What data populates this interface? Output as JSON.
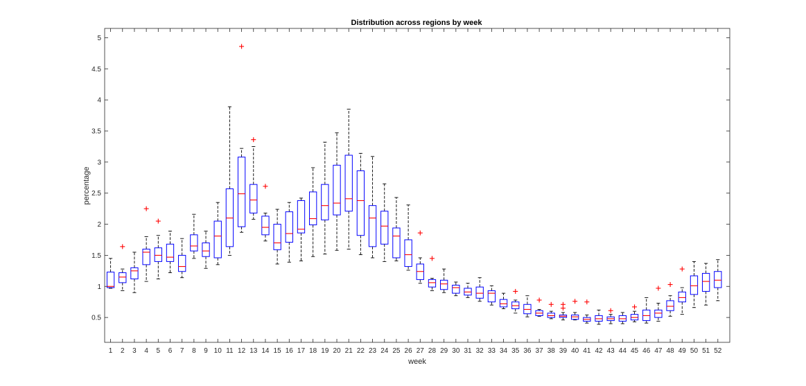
{
  "chart_data": {
    "type": "boxplot",
    "title": "Distribution across regions by week",
    "xlabel": "week",
    "ylabel": "percentage",
    "ylim": [
      0.1,
      5.15
    ],
    "yticks": [
      0.5,
      1,
      1.5,
      2,
      2.5,
      3,
      3.5,
      4,
      4.5,
      5
    ],
    "ytick_labels": [
      "0.5",
      "1",
      "1.5",
      "2",
      "2.5",
      "3",
      "3.5",
      "4",
      "4.5",
      "5"
    ],
    "grid": false,
    "colors": {
      "box": "#0000ff",
      "median": "#ff0000",
      "whisker": "#000000",
      "outlier": "#ff0000",
      "axis": "#262626"
    },
    "categories": [
      "1",
      "2",
      "3",
      "4",
      "5",
      "6",
      "7",
      "8",
      "9",
      "10",
      "11",
      "12",
      "13",
      "14",
      "15",
      "16",
      "17",
      "18",
      "19",
      "20",
      "21",
      "22",
      "23",
      "24",
      "25",
      "26",
      "27",
      "28",
      "29",
      "30",
      "31",
      "32",
      "33",
      "34",
      "35",
      "36",
      "37",
      "38",
      "39",
      "40",
      "41",
      "42",
      "43",
      "44",
      "45",
      "46",
      "47",
      "48",
      "49",
      "50",
      "51",
      "52"
    ],
    "boxes": [
      {
        "week": "1",
        "lw": 0.97,
        "q1": 0.98,
        "med": 1.0,
        "q3": 1.23,
        "uw": 1.45,
        "out": []
      },
      {
        "week": "2",
        "lw": 0.93,
        "q1": 1.06,
        "med": 1.15,
        "q3": 1.22,
        "uw": 1.28,
        "out": [
          1.64
        ]
      },
      {
        "week": "3",
        "lw": 0.9,
        "q1": 1.12,
        "med": 1.25,
        "q3": 1.3,
        "uw": 1.55,
        "out": []
      },
      {
        "week": "4",
        "lw": 1.08,
        "q1": 1.35,
        "med": 1.55,
        "q3": 1.6,
        "uw": 1.8,
        "out": [
          2.25
        ]
      },
      {
        "week": "5",
        "lw": 1.12,
        "q1": 1.4,
        "med": 1.5,
        "q3": 1.62,
        "uw": 1.82,
        "out": [
          2.05
        ]
      },
      {
        "week": "6",
        "lw": 1.22,
        "q1": 1.4,
        "med": 1.47,
        "q3": 1.68,
        "uw": 1.89,
        "out": []
      },
      {
        "week": "7",
        "lw": 1.14,
        "q1": 1.24,
        "med": 1.32,
        "q3": 1.5,
        "uw": 1.77,
        "out": []
      },
      {
        "week": "8",
        "lw": 1.45,
        "q1": 1.57,
        "med": 1.65,
        "q3": 1.83,
        "uw": 2.16,
        "out": []
      },
      {
        "week": "9",
        "lw": 1.29,
        "q1": 1.48,
        "med": 1.57,
        "q3": 1.7,
        "uw": 1.89,
        "out": []
      },
      {
        "week": "10",
        "lw": 1.35,
        "q1": 1.46,
        "med": 1.81,
        "q3": 2.05,
        "uw": 2.35,
        "out": []
      },
      {
        "week": "11",
        "lw": 1.5,
        "q1": 1.64,
        "med": 2.1,
        "q3": 2.57,
        "uw": 3.89,
        "out": []
      },
      {
        "week": "12",
        "lw": 1.87,
        "q1": 1.96,
        "med": 2.49,
        "q3": 3.08,
        "uw": 3.22,
        "out": [
          4.86
        ]
      },
      {
        "week": "13",
        "lw": 2.08,
        "q1": 2.18,
        "med": 2.39,
        "q3": 2.64,
        "uw": 3.25,
        "out": [
          3.36
        ]
      },
      {
        "week": "14",
        "lw": 1.73,
        "q1": 1.83,
        "med": 1.95,
        "q3": 2.13,
        "uw": 2.18,
        "out": [
          2.61
        ]
      },
      {
        "week": "15",
        "lw": 1.36,
        "q1": 1.59,
        "med": 1.7,
        "q3": 2.0,
        "uw": 2.24,
        "out": []
      },
      {
        "week": "16",
        "lw": 1.39,
        "q1": 1.71,
        "med": 1.85,
        "q3": 2.2,
        "uw": 2.35,
        "out": []
      },
      {
        "week": "17",
        "lw": 1.41,
        "q1": 1.86,
        "med": 1.92,
        "q3": 2.38,
        "uw": 2.42,
        "out": []
      },
      {
        "week": "18",
        "lw": 1.48,
        "q1": 1.99,
        "med": 2.09,
        "q3": 2.52,
        "uw": 2.91,
        "out": []
      },
      {
        "week": "19",
        "lw": 1.52,
        "q1": 2.07,
        "med": 2.3,
        "q3": 2.64,
        "uw": 3.32,
        "out": []
      },
      {
        "week": "20",
        "lw": 1.58,
        "q1": 2.15,
        "med": 2.34,
        "q3": 2.95,
        "uw": 3.47,
        "out": []
      },
      {
        "week": "21",
        "lw": 1.6,
        "q1": 2.21,
        "med": 2.41,
        "q3": 3.11,
        "uw": 3.85,
        "out": []
      },
      {
        "week": "22",
        "lw": 1.51,
        "q1": 1.82,
        "med": 2.38,
        "q3": 2.86,
        "uw": 3.14,
        "out": []
      },
      {
        "week": "23",
        "lw": 1.46,
        "q1": 1.64,
        "med": 2.1,
        "q3": 2.3,
        "uw": 3.09,
        "out": []
      },
      {
        "week": "24",
        "lw": 1.4,
        "q1": 1.68,
        "med": 1.97,
        "q3": 2.21,
        "uw": 2.65,
        "out": []
      },
      {
        "week": "25",
        "lw": 1.41,
        "q1": 1.46,
        "med": 1.81,
        "q3": 1.94,
        "uw": 2.43,
        "out": []
      },
      {
        "week": "26",
        "lw": 1.26,
        "q1": 1.32,
        "med": 1.51,
        "q3": 1.75,
        "uw": 2.31,
        "out": []
      },
      {
        "week": "27",
        "lw": 1.05,
        "q1": 1.11,
        "med": 1.24,
        "q3": 1.36,
        "uw": 1.46,
        "out": [
          1.86
        ]
      },
      {
        "week": "28",
        "lw": 0.93,
        "q1": 0.99,
        "med": 1.06,
        "q3": 1.11,
        "uw": 1.13,
        "out": [
          1.45
        ]
      },
      {
        "week": "29",
        "lw": 0.9,
        "q1": 0.95,
        "med": 1.04,
        "q3": 1.1,
        "uw": 1.28,
        "out": []
      },
      {
        "week": "30",
        "lw": 0.85,
        "q1": 0.89,
        "med": 0.98,
        "q3": 1.02,
        "uw": 1.07,
        "out": []
      },
      {
        "week": "31",
        "lw": 0.82,
        "q1": 0.86,
        "med": 0.91,
        "q3": 0.97,
        "uw": 1.05,
        "out": []
      },
      {
        "week": "32",
        "lw": 0.76,
        "q1": 0.81,
        "med": 0.89,
        "q3": 0.99,
        "uw": 1.14,
        "out": []
      },
      {
        "week": "33",
        "lw": 0.7,
        "q1": 0.75,
        "med": 0.89,
        "q3": 0.93,
        "uw": 1.01,
        "out": []
      },
      {
        "week": "34",
        "lw": 0.64,
        "q1": 0.67,
        "med": 0.72,
        "q3": 0.79,
        "uw": 0.89,
        "out": []
      },
      {
        "week": "35",
        "lw": 0.57,
        "q1": 0.64,
        "med": 0.69,
        "q3": 0.75,
        "uw": 0.78,
        "out": [
          0.92
        ]
      },
      {
        "week": "36",
        "lw": 0.51,
        "q1": 0.56,
        "med": 0.63,
        "q3": 0.71,
        "uw": 0.85,
        "out": []
      },
      {
        "week": "37",
        "lw": 0.52,
        "q1": 0.53,
        "med": 0.57,
        "q3": 0.61,
        "uw": 0.63,
        "out": [
          0.78
        ]
      },
      {
        "week": "38",
        "lw": 0.48,
        "q1": 0.5,
        "med": 0.53,
        "q3": 0.57,
        "uw": 0.6,
        "out": [
          0.71
        ]
      },
      {
        "week": "39",
        "lw": 0.46,
        "q1": 0.5,
        "med": 0.52,
        "q3": 0.54,
        "uw": 0.58,
        "out": [
          0.65,
          0.71
        ]
      },
      {
        "week": "40",
        "lw": 0.46,
        "q1": 0.47,
        "med": 0.51,
        "q3": 0.54,
        "uw": 0.58,
        "out": [
          0.76
        ]
      },
      {
        "week": "41",
        "lw": 0.41,
        "q1": 0.44,
        "med": 0.47,
        "q3": 0.5,
        "uw": 0.54,
        "out": [
          0.75
        ]
      },
      {
        "week": "42",
        "lw": 0.39,
        "q1": 0.44,
        "med": 0.48,
        "q3": 0.53,
        "uw": 0.62,
        "out": []
      },
      {
        "week": "43",
        "lw": 0.4,
        "q1": 0.45,
        "med": 0.48,
        "q3": 0.51,
        "uw": 0.55,
        "out": [
          0.61
        ]
      },
      {
        "week": "44",
        "lw": 0.4,
        "q1": 0.44,
        "med": 0.48,
        "q3": 0.53,
        "uw": 0.58,
        "out": []
      },
      {
        "week": "45",
        "lw": 0.43,
        "q1": 0.46,
        "med": 0.5,
        "q3": 0.55,
        "uw": 0.6,
        "out": [
          0.67
        ]
      },
      {
        "week": "46",
        "lw": 0.41,
        "q1": 0.45,
        "med": 0.53,
        "q3": 0.62,
        "uw": 0.82,
        "out": []
      },
      {
        "week": "47",
        "lw": 0.44,
        "q1": 0.5,
        "med": 0.57,
        "q3": 0.62,
        "uw": 0.73,
        "out": [
          0.97
        ]
      },
      {
        "week": "48",
        "lw": 0.52,
        "q1": 0.61,
        "med": 0.68,
        "q3": 0.77,
        "uw": 0.85,
        "out": [
          1.03
        ]
      },
      {
        "week": "49",
        "lw": 0.55,
        "q1": 0.75,
        "med": 0.82,
        "q3": 0.91,
        "uw": 0.98,
        "out": [
          1.28
        ]
      },
      {
        "week": "50",
        "lw": 0.66,
        "q1": 0.87,
        "med": 1.01,
        "q3": 1.17,
        "uw": 1.4,
        "out": []
      },
      {
        "week": "51",
        "lw": 0.7,
        "q1": 0.92,
        "med": 1.08,
        "q3": 1.21,
        "uw": 1.37,
        "out": []
      },
      {
        "week": "52",
        "lw": 0.77,
        "q1": 0.98,
        "med": 1.1,
        "q3": 1.24,
        "uw": 1.43,
        "out": []
      }
    ]
  }
}
